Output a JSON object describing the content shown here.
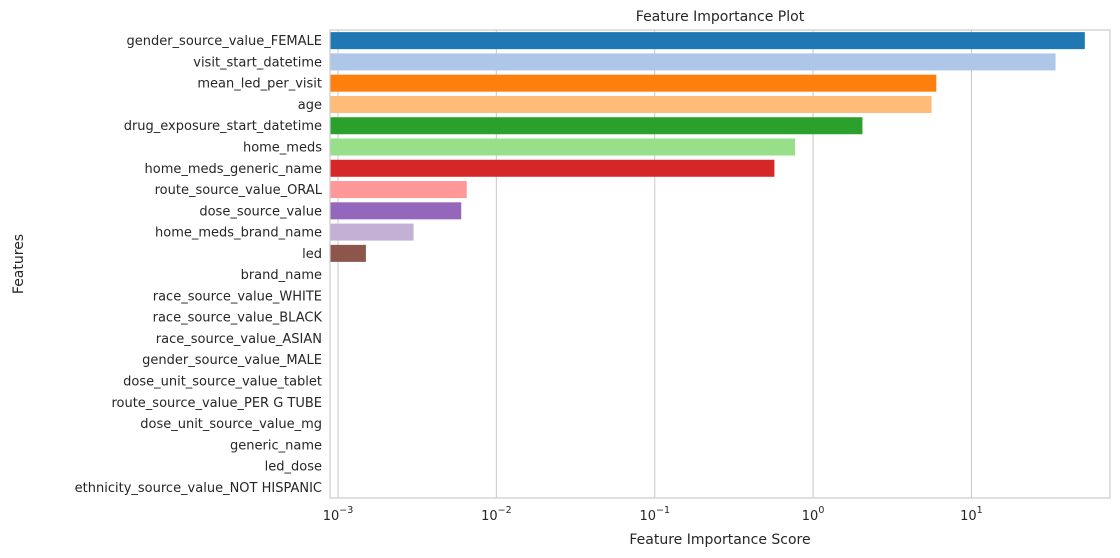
{
  "chart_data": {
    "type": "bar",
    "orientation": "horizontal",
    "title": "Feature Importance Plot",
    "xlabel": "Feature Importance Score",
    "ylabel": "Features",
    "xscale": "log",
    "xlim": [
      0.00089,
      75
    ],
    "x_ticks": [
      {
        "value": 0.001,
        "base": "10",
        "exp": "−3"
      },
      {
        "value": 0.01,
        "base": "10",
        "exp": "−2"
      },
      {
        "value": 0.1,
        "base": "10",
        "exp": "−1"
      },
      {
        "value": 1,
        "base": "10",
        "exp": "0"
      },
      {
        "value": 10,
        "base": "10",
        "exp": "1"
      }
    ],
    "grid": "vertical",
    "categories": [
      "gender_source_value_FEMALE",
      "visit_start_datetime",
      "mean_led_per_visit",
      "age",
      "drug_exposure_start_datetime",
      "home_meds",
      "home_meds_generic_name",
      "route_source_value_ORAL",
      "dose_source_value",
      "home_meds_brand_name",
      "led",
      "brand_name",
      "race_source_value_WHITE",
      "race_source_value_BLACK",
      "race_source_value_ASIAN",
      "gender_source_value_MALE",
      "dose_unit_source_value_tablet",
      "route_source_value_PER G TUBE",
      "dose_unit_source_value_mg",
      "generic_name",
      "led_dose",
      "ethnicity_source_value_NOT HISPANIC"
    ],
    "values": [
      52,
      34,
      6.0,
      5.6,
      2.05,
      0.77,
      0.57,
      0.0065,
      0.006,
      0.003,
      0.0015,
      0,
      0,
      0,
      0,
      0,
      0,
      0,
      0,
      0,
      0,
      0
    ],
    "colors": [
      "#1f77b4",
      "#aec7e8",
      "#ff7f0e",
      "#ffbb78",
      "#2ca02c",
      "#98df8a",
      "#d62728",
      "#ff9896",
      "#9467bd",
      "#c5b0d5",
      "#8c564b",
      "#c49c94",
      "#e377c2",
      "#f7b6d2",
      "#7f7f7f",
      "#c7c7c7",
      "#bcbd22",
      "#dbdb8d",
      "#17becf",
      "#9edae5",
      "#1f77b4",
      "#aec7e8"
    ]
  }
}
